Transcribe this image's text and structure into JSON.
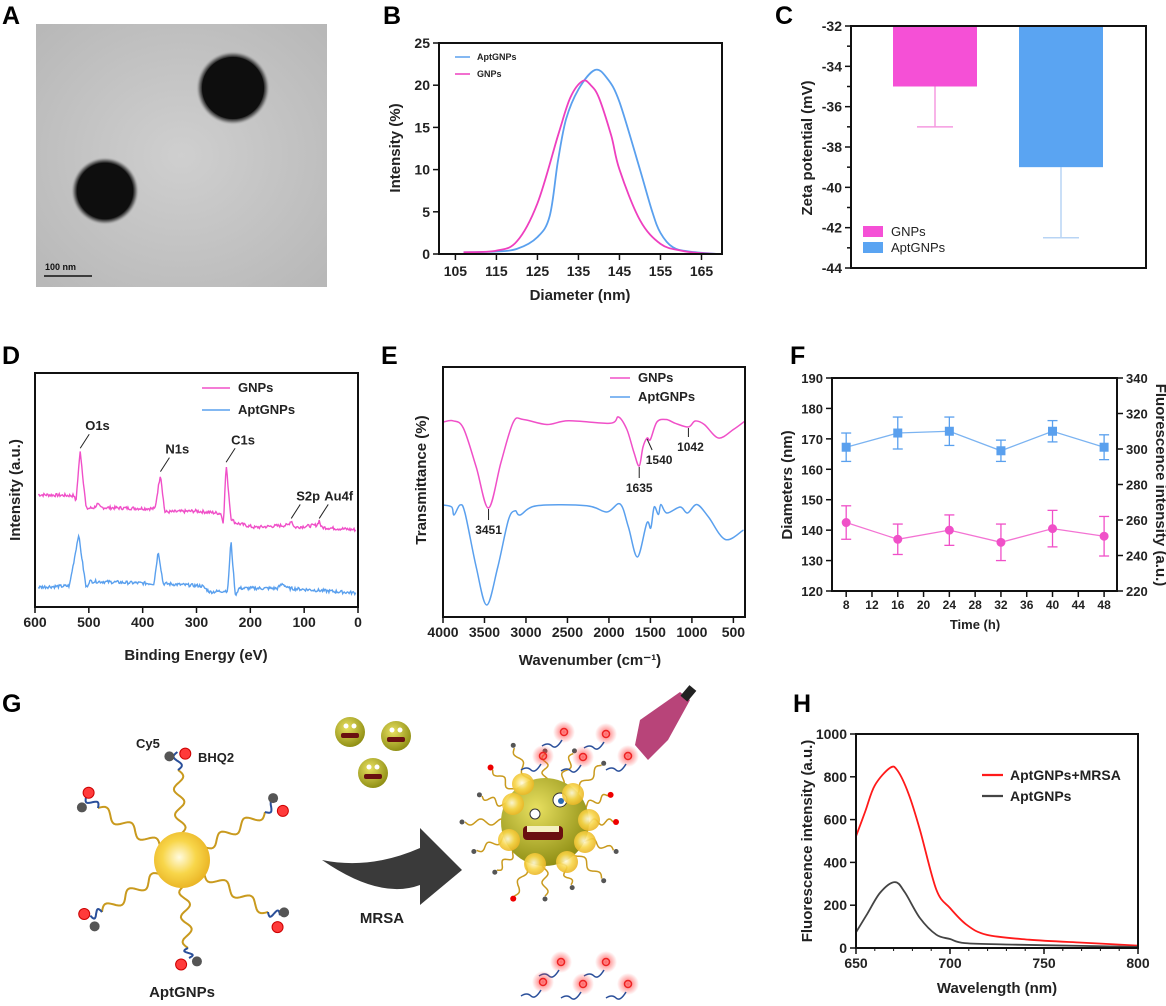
{
  "panels": {
    "A": "A",
    "B": "B",
    "C": "C",
    "D": "D",
    "E": "E",
    "F": "F",
    "G": "G",
    "H": "H"
  },
  "figure_a": {
    "scale_bar": "100 nm",
    "image": "TEM micrograph of two dark spherical nanoparticles on grey background"
  },
  "figure_g": {
    "labels": {
      "cy5": "Cy5",
      "bhq2": "BHQ2",
      "mrsa": "MRSA",
      "aptgnps": "AptGNPs"
    },
    "colors": {
      "gold": "#f2c230",
      "linker": "#c99a1e",
      "dna": "#2a4f9a",
      "cy5": "#ff3b3b",
      "bhq2": "#555555",
      "bacteria": "#b8b21e",
      "arrow": "#3a3a3a"
    }
  },
  "chart_data": [
    {
      "id": "B",
      "type": "line",
      "xlabel": "Diameter (nm)",
      "ylabel": "Intensity (%)",
      "xlim": [
        101,
        170
      ],
      "ylim": [
        0,
        25
      ],
      "xticks": [
        105,
        115,
        125,
        135,
        145,
        155,
        165
      ],
      "yticks": [
        0,
        5,
        10,
        15,
        20,
        25
      ],
      "grid": false,
      "legend_placement": "top-left",
      "series": [
        {
          "name": "AptGNPs",
          "color": "#5aa0ee",
          "points": [
            [
              107,
              0.2
            ],
            [
              115,
              0.3
            ],
            [
              120,
              0.6
            ],
            [
              125,
              2
            ],
            [
              128,
              4.5
            ],
            [
              130,
              11
            ],
            [
              132,
              16
            ],
            [
              135,
              19.5
            ],
            [
              139,
              21.8
            ],
            [
              142,
              20.8
            ],
            [
              145,
              18
            ],
            [
              150,
              10
            ],
            [
              153,
              5
            ],
            [
              155,
              2.5
            ],
            [
              158,
              0.8
            ],
            [
              162,
              0.3
            ],
            [
              169,
              0
            ]
          ]
        },
        {
          "name": "GNPs",
          "color": "#ee3fbf",
          "points": [
            [
              107,
              0.2
            ],
            [
              115,
              0.4
            ],
            [
              120,
              1.5
            ],
            [
              125,
              6
            ],
            [
              130,
              14
            ],
            [
              133,
              18.5
            ],
            [
              136,
              20.5
            ],
            [
              138,
              20
            ],
            [
              140,
              18.5
            ],
            [
              143,
              14
            ],
            [
              145,
              10
            ],
            [
              150,
              4
            ],
            [
              155,
              1.2
            ],
            [
              160,
              0.4
            ],
            [
              165,
              0.1
            ],
            [
              169,
              0
            ]
          ]
        }
      ]
    },
    {
      "id": "C",
      "type": "bar",
      "ylabel": "Zeta potential (mV)",
      "ylim": [
        -44,
        -32
      ],
      "yticks": [
        -32,
        -34,
        -36,
        -38,
        -40,
        -42,
        -44
      ],
      "categories": [
        "GNPs",
        "AptGNPs"
      ],
      "values": [
        -35,
        -39
      ],
      "errors": [
        2,
        3.5
      ],
      "colors": [
        "#f550d6",
        "#5aa4f2"
      ],
      "grid": false,
      "legend_placement": "bottom-left"
    },
    {
      "id": "D",
      "type": "line",
      "xlabel": "Binding Energy (eV)",
      "ylabel": "Intensity (a.u.)",
      "xlim": [
        600,
        0
      ],
      "ylim": [
        0,
        100
      ],
      "xticks": [
        600,
        500,
        400,
        300,
        200,
        100,
        0
      ],
      "grid": false,
      "legend_placement": "top-right",
      "series": [
        {
          "name": "GNPs",
          "color": "#f050c8",
          "points": [
            [
              594,
              48
            ],
            [
              528,
              47.6
            ],
            [
              524,
              45
            ],
            [
              516,
              67
            ],
            [
              505,
              42
            ],
            [
              490,
              42.5
            ],
            [
              484,
              44
            ],
            [
              478,
              42.5
            ],
            [
              377,
              42
            ],
            [
              367,
              57
            ],
            [
              359,
              40.6
            ],
            [
              300,
              41
            ],
            [
              255,
              40
            ],
            [
              250,
              36
            ],
            [
              245,
              61
            ],
            [
              236,
              38
            ],
            [
              228,
              36
            ],
            [
              192,
              34
            ],
            [
              130,
              35
            ],
            [
              124,
              37
            ],
            [
              118,
              34
            ],
            [
              76,
              35
            ],
            [
              72,
              37
            ],
            [
              68,
              34
            ],
            [
              4,
              33
            ]
          ]
        },
        {
          "name": "AptGNPs",
          "color": "#5aa0ee",
          "points": [
            [
              594,
              8.5
            ],
            [
              536,
              9
            ],
            [
              519,
              31
            ],
            [
              505,
              8
            ],
            [
              499,
              11
            ],
            [
              379,
              10
            ],
            [
              371,
              24
            ],
            [
              362,
              10
            ],
            [
              290,
              9
            ],
            [
              275,
              6.4
            ],
            [
              242,
              7
            ],
            [
              236,
              28.6
            ],
            [
              228,
              5
            ],
            [
              221,
              8
            ],
            [
              150,
              8
            ],
            [
              140,
              10
            ],
            [
              130,
              8
            ],
            [
              4,
              6
            ]
          ]
        }
      ],
      "annotations": [
        {
          "text": "O1s",
          "x": 516
        },
        {
          "text": "N1s",
          "x": 367
        },
        {
          "text": "C1s",
          "x": 245
        },
        {
          "text": "S2p",
          "x": 124
        },
        {
          "text": "Au4f",
          "x": 72
        }
      ]
    },
    {
      "id": "E",
      "type": "line",
      "xlabel": "Wavenumber (cm⁻¹)",
      "ylabel": "Transmittance (%)",
      "xlim": [
        4000,
        360
      ],
      "ylim": [
        0,
        100
      ],
      "xticks": [
        4000,
        3500,
        3000,
        2500,
        2000,
        1500,
        1000,
        500
      ],
      "grid": false,
      "legend_placement": "top-right",
      "series": [
        {
          "name": "GNPs",
          "color": "#f050c8",
          "points": [
            [
              3996,
              78
            ],
            [
              3880,
              78.5
            ],
            [
              3755,
              75.6
            ],
            [
              3600,
              60
            ],
            [
              3451,
              43.6
            ],
            [
              3300,
              62
            ],
            [
              3152,
              78
            ],
            [
              3031,
              79
            ],
            [
              2749,
              77
            ],
            [
              2488,
              78.5
            ],
            [
              1986,
              77.5
            ],
            [
              1885,
              80
            ],
            [
              1784,
              75
            ],
            [
              1700,
              66
            ],
            [
              1635,
              60.4
            ],
            [
              1590,
              68
            ],
            [
              1540,
              71.6
            ],
            [
              1500,
              71
            ],
            [
              1422,
              78
            ],
            [
              1310,
              79
            ],
            [
              1200,
              77.5
            ],
            [
              1042,
              76
            ],
            [
              960,
              78.4
            ],
            [
              850,
              77
            ],
            [
              679,
              71.6
            ],
            [
              500,
              75
            ],
            [
              360,
              78.4
            ]
          ]
        },
        {
          "name": "AptGNPs",
          "color": "#5aa0ee",
          "points": [
            [
              3996,
              44.8
            ],
            [
              3895,
              44
            ],
            [
              3867,
              40.8
            ],
            [
              3795,
              44.8
            ],
            [
              3735,
              41.6
            ],
            [
              3600,
              20
            ],
            [
              3473,
              4.8
            ],
            [
              3340,
              20
            ],
            [
              3212,
              38.8
            ],
            [
              3132,
              42.5
            ],
            [
              3071,
              40.8
            ],
            [
              2870,
              44.5
            ],
            [
              2267,
              44.5
            ],
            [
              2025,
              42
            ],
            [
              1865,
              45.2
            ],
            [
              1765,
              36
            ],
            [
              1656,
              24
            ],
            [
              1543,
              37.6
            ],
            [
              1495,
              35.6
            ],
            [
              1455,
              44
            ],
            [
              1403,
              41
            ],
            [
              1374,
              45
            ],
            [
              1302,
              41.6
            ],
            [
              1141,
              44
            ],
            [
              1053,
              41.6
            ],
            [
              940,
              45
            ],
            [
              800,
              40
            ],
            [
              598,
              31
            ],
            [
              378,
              34.8
            ]
          ]
        }
      ],
      "annotations": [
        {
          "text": "3451",
          "x": 3451
        },
        {
          "text": "1635",
          "x": 1635
        },
        {
          "text": "1540",
          "x": 1540
        },
        {
          "text": "1042",
          "x": 1042
        }
      ]
    },
    {
      "id": "F",
      "type": "scatter",
      "xlabel": "Time (h)",
      "ylabel": "Diameters (nm)",
      "y2label": "Fluorescence intensity (a.u.)",
      "xlim": [
        5.8,
        50
      ],
      "ylim": [
        120,
        190
      ],
      "y2lim": [
        220,
        340
      ],
      "xticks": [
        8,
        12,
        16,
        20,
        24,
        28,
        32,
        36,
        40,
        44,
        48
      ],
      "yticks": [
        120,
        130,
        140,
        150,
        160,
        170,
        180,
        190
      ],
      "y2ticks": [
        220,
        240,
        260,
        280,
        300,
        320,
        340
      ],
      "x": [
        8,
        16,
        24,
        32,
        40,
        48
      ],
      "grid": false,
      "series": [
        {
          "name": "Diameters",
          "axis": "left",
          "color": "#f050c8",
          "marker": "circle",
          "values": [
            142.5,
            137,
            140,
            136,
            140.5,
            138
          ],
          "errors": [
            5.5,
            5,
            5,
            6,
            6,
            6.5
          ]
        },
        {
          "name": "Fluorescence intensity",
          "axis": "right",
          "color": "#5aa0ee",
          "marker": "square",
          "values": [
            301,
            309,
            310,
            299,
            310,
            301
          ],
          "errors": [
            8,
            9,
            8,
            6,
            6,
            7
          ]
        }
      ]
    },
    {
      "id": "H",
      "type": "line",
      "xlabel": "Wavelength (nm)",
      "ylabel": "Fluorescence intensity (a.u.)",
      "xlim": [
        650,
        800
      ],
      "ylim": [
        0,
        1000
      ],
      "xticks": [
        650,
        700,
        750,
        800
      ],
      "yticks": [
        0,
        200,
        400,
        600,
        800,
        1000
      ],
      "grid": false,
      "legend_placement": "top-right",
      "series": [
        {
          "name": "AptGNPs+MRSA",
          "color": "#ff1a1a",
          "points": [
            [
              650,
              522
            ],
            [
              655,
              640
            ],
            [
              660,
              760
            ],
            [
              668,
              841
            ],
            [
              672,
              830
            ],
            [
              678,
              720
            ],
            [
              684,
              553
            ],
            [
              692.7,
              273
            ],
            [
              700,
              187
            ],
            [
              708.8,
              109
            ],
            [
              719.4,
              62
            ],
            [
              742,
              39
            ],
            [
              770,
              25
            ],
            [
              800,
              11
            ]
          ]
        },
        {
          "name": "AptGNPs",
          "color": "#444444",
          "points": [
            [
              650,
              73
            ],
            [
              656,
              160
            ],
            [
              663,
              260
            ],
            [
              670.7,
              308
            ],
            [
              676,
              260
            ],
            [
              684,
              140
            ],
            [
              692.7,
              62
            ],
            [
              700,
              42
            ],
            [
              708,
              23
            ],
            [
              733,
              16
            ],
            [
              770,
              10
            ],
            [
              800,
              5
            ]
          ]
        }
      ]
    }
  ]
}
